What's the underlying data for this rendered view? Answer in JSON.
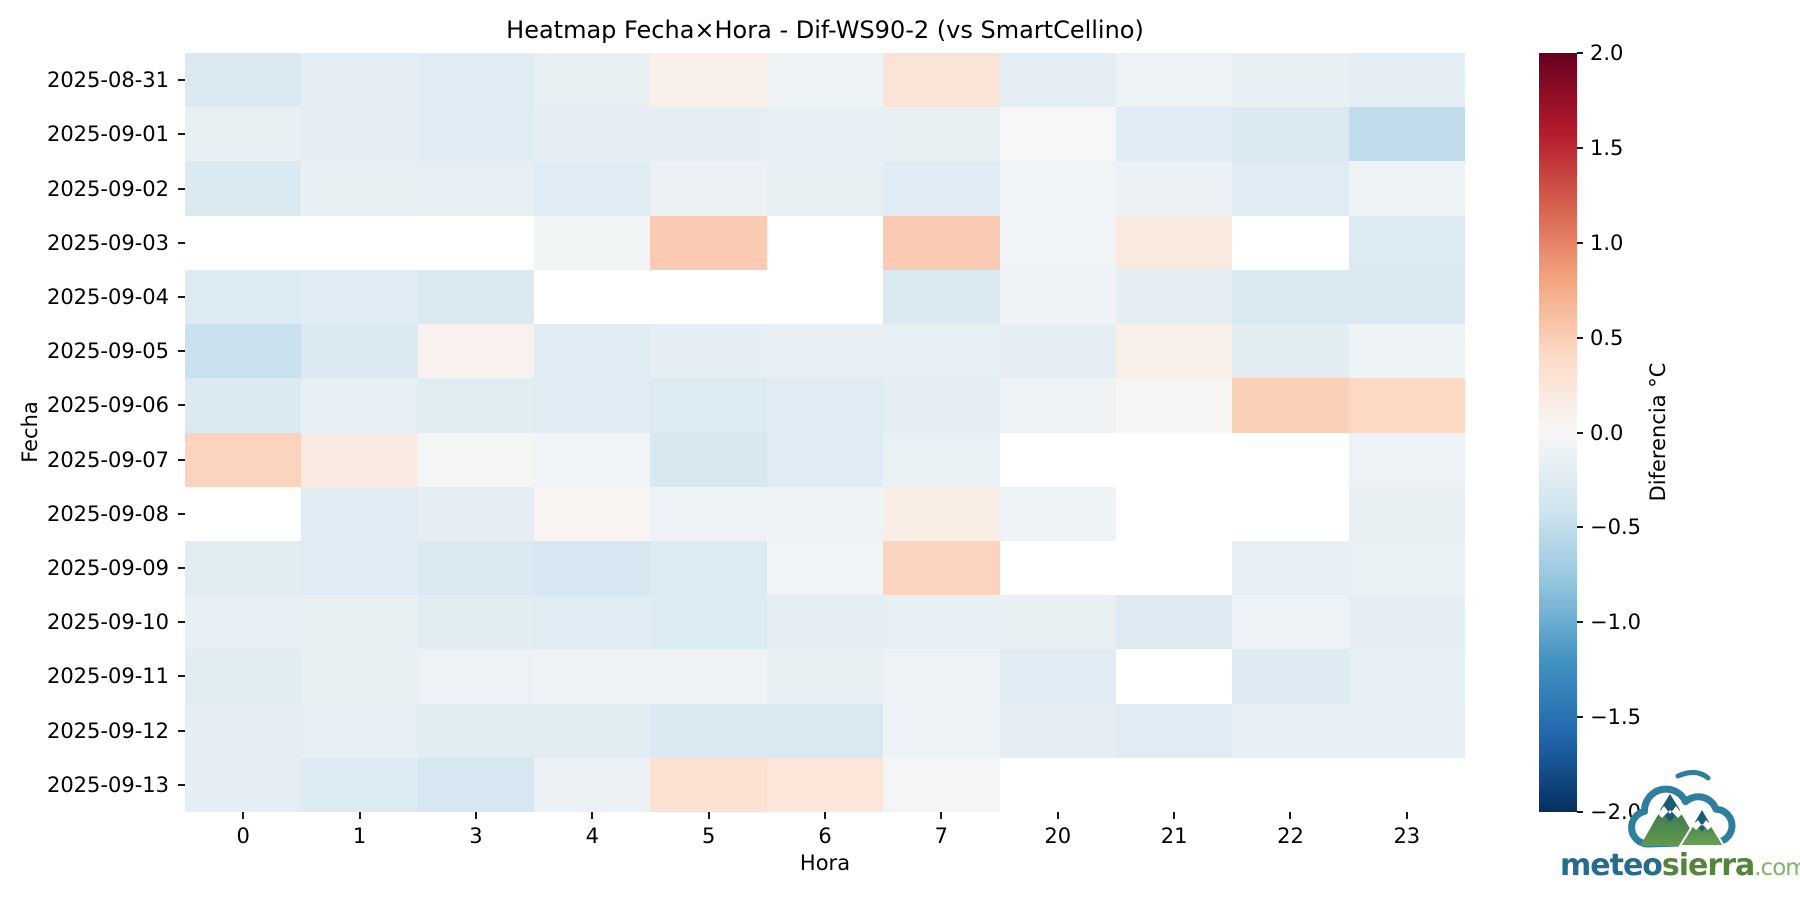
{
  "figure": {
    "title": "Heatmap Fecha×Hora - Dif-WS90-2 (vs SmartCellino)"
  },
  "chart_data": {
    "type": "heatmap",
    "title": "Heatmap Fecha×Hora - Dif-WS90-2 (vs SmartCellino)",
    "xlabel": "Hora",
    "ylabel": "Fecha",
    "x_tick_labels": [
      "0",
      "1",
      "3",
      "4",
      "5",
      "6",
      "7",
      "20",
      "21",
      "22",
      "23"
    ],
    "y_tick_labels": [
      "2025-08-31",
      "2025-09-01",
      "2025-09-02",
      "2025-09-03",
      "2025-09-04",
      "2025-09-05",
      "2025-09-06",
      "2025-09-07",
      "2025-09-08",
      "2025-09-09",
      "2025-09-10",
      "2025-09-11",
      "2025-09-12",
      "2025-09-13"
    ],
    "values": [
      [
        -0.3,
        -0.2,
        -0.25,
        -0.15,
        0.1,
        -0.1,
        0.27,
        -0.2,
        -0.12,
        -0.15,
        -0.2
      ],
      [
        -0.16,
        -0.2,
        -0.25,
        -0.2,
        -0.2,
        -0.18,
        -0.15,
        0.0,
        -0.25,
        -0.3,
        -0.5
      ],
      [
        -0.3,
        -0.15,
        -0.17,
        -0.25,
        -0.13,
        -0.15,
        -0.25,
        -0.07,
        -0.13,
        -0.25,
        -0.1
      ],
      [
        null,
        null,
        null,
        -0.05,
        0.52,
        null,
        0.52,
        -0.07,
        0.2,
        null,
        -0.28
      ],
      [
        -0.27,
        -0.25,
        -0.3,
        null,
        null,
        null,
        -0.3,
        -0.08,
        -0.2,
        -0.32,
        -0.3
      ],
      [
        -0.45,
        -0.3,
        0.08,
        -0.25,
        -0.2,
        -0.17,
        -0.18,
        -0.2,
        0.12,
        -0.22,
        -0.1
      ],
      [
        -0.3,
        -0.18,
        -0.23,
        -0.25,
        -0.28,
        -0.25,
        -0.2,
        -0.08,
        0.03,
        0.48,
        0.42
      ],
      [
        0.45,
        0.18,
        -0.03,
        -0.07,
        -0.33,
        -0.25,
        -0.14,
        null,
        null,
        null,
        -0.12
      ],
      [
        null,
        -0.25,
        -0.2,
        0.05,
        -0.12,
        -0.08,
        0.15,
        -0.1,
        null,
        null,
        -0.15
      ],
      [
        -0.22,
        -0.25,
        -0.3,
        -0.35,
        -0.28,
        -0.07,
        0.45,
        null,
        null,
        -0.18,
        -0.14
      ],
      [
        -0.18,
        -0.15,
        -0.22,
        -0.24,
        -0.27,
        -0.2,
        -0.18,
        -0.16,
        -0.26,
        -0.12,
        -0.2
      ],
      [
        -0.22,
        -0.15,
        -0.12,
        -0.1,
        -0.08,
        -0.16,
        -0.12,
        -0.25,
        null,
        -0.26,
        -0.18
      ],
      [
        -0.2,
        -0.18,
        -0.22,
        -0.23,
        -0.3,
        -0.32,
        -0.12,
        -0.2,
        -0.25,
        -0.17,
        -0.17
      ],
      [
        -0.2,
        -0.27,
        -0.35,
        -0.13,
        0.3,
        0.25,
        -0.04,
        null,
        null,
        null,
        null
      ]
    ],
    "missing_value_color": "#ffffff",
    "grid": false,
    "colorbar": {
      "label": "Diferencia °C",
      "vmin": -2.0,
      "vmax": 2.0,
      "tick_values": [
        2.0,
        1.5,
        1.0,
        0.5,
        0.0,
        -0.5,
        -1.0,
        -1.5,
        -2.0
      ],
      "tick_labels": [
        "2.0",
        "1.5",
        "1.0",
        "0.5",
        "0.0",
        "−0.5",
        "−1.0",
        "−1.5",
        "−2.0"
      ],
      "colormap_name": "RdBu_r",
      "colormap_stops": [
        {
          "value": -2.0,
          "color": "#053061"
        },
        {
          "value": -1.6,
          "color": "#2166ac"
        },
        {
          "value": -1.2,
          "color": "#4393c3"
        },
        {
          "value": -0.8,
          "color": "#92c5de"
        },
        {
          "value": -0.4,
          "color": "#d1e5f0"
        },
        {
          "value": 0.0,
          "color": "#f7f7f7"
        },
        {
          "value": 0.4,
          "color": "#fddbc7"
        },
        {
          "value": 0.8,
          "color": "#f4a582"
        },
        {
          "value": 1.2,
          "color": "#d6604d"
        },
        {
          "value": 1.6,
          "color": "#b2182b"
        },
        {
          "value": 2.0,
          "color": "#67001f"
        }
      ]
    }
  },
  "watermark": {
    "brand_part1": "meteo",
    "brand_part2": "sierra",
    "brand_suffix": ".com",
    "colors": {
      "part1": "#246b8e",
      "part2": "#55853b",
      "suffix": "#84b36a",
      "cloud": "#2e7e9d",
      "mountain_dark": "#1d5a74",
      "mountain_green": "#61994a"
    }
  }
}
